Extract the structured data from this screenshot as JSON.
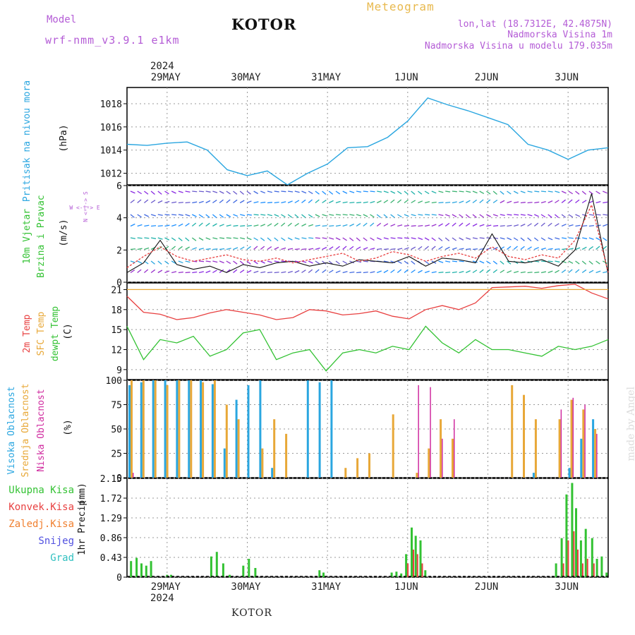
{
  "header": {
    "model_label": "Model",
    "model_name": "wrf-nmm_v3.9.1 e1km",
    "title": "KOTOR",
    "product": "Meteogram",
    "coords": "lon,lat (18.7312E, 42.4875N)",
    "altitude": "Nadmorska Visina 1m",
    "model_altitude": "Nadmorska Visina u modelu 179.035m",
    "year": "2024",
    "footer": "KOTOR",
    "watermark": "made by Angel"
  },
  "time_axis": {
    "top_labels": [
      "29MAY",
      "30MAY",
      "31MAY",
      "1JUN",
      "2JUN",
      "3JUN"
    ],
    "bottom_labels": [
      "29MAY",
      "30MAY",
      "31MAY",
      "1JUN",
      "2JUN",
      "3JUN"
    ],
    "day_fraction_positions": [
      0.5,
      1.5,
      2.5,
      3.5,
      4.5,
      5.5
    ],
    "range_days": [
      0,
      6
    ]
  },
  "panels": {
    "pressure": {
      "title": "Pritisak na nivou mora",
      "unit": "(hPa)",
      "color": "#2aa6e0"
    },
    "wind": {
      "title": "10m Vjetar",
      "title2": "Brzina i Pravac",
      "unit": "(m/s)",
      "compass": "W <-|-> E",
      "compass_vert": "N <-|-> S"
    },
    "temp": {
      "label_2m": "2m Temp",
      "label_sfc": "SFC Temp",
      "label_dew": "dewpt Temp",
      "unit": "(C)"
    },
    "cloud": {
      "label_high": "Visoka Oblacnost",
      "label_mid": "Srednja Oblacnost",
      "label_low": "Niska Oblacnost",
      "unit": "(%)"
    },
    "precip": {
      "title": "1hr Precip",
      "unit": "(mm)",
      "legend": [
        {
          "label": "Ukupna Kisa",
          "color": "#33c233"
        },
        {
          "label": "Konvek.Kisa",
          "color": "#e84040"
        },
        {
          "label": "Zaledj.Kisa",
          "color": "#f08030"
        },
        {
          "label": "Snijeg",
          "color": "#5050e0"
        },
        {
          "label": "Grad",
          "color": "#30c0c0"
        }
      ]
    }
  },
  "chart_data": [
    {
      "type": "line",
      "panel": "pressure",
      "x": [
        0,
        0.25,
        0.5,
        0.75,
        1.0,
        1.25,
        1.5,
        1.75,
        2.0,
        2.25,
        2.5,
        2.75,
        3.0,
        3.25,
        3.5,
        3.75,
        4.0,
        4.25,
        4.5,
        4.75,
        5.0,
        5.25,
        5.5,
        5.75,
        6.0
      ],
      "values": [
        1014.5,
        1014.4,
        1014.6,
        1014.7,
        1014.0,
        1012.3,
        1011.8,
        1012.2,
        1011.0,
        1012.0,
        1012.8,
        1014.2,
        1014.3,
        1015.1,
        1016.5,
        1018.5,
        1017.9,
        1017.4,
        1016.8,
        1016.2,
        1014.5,
        1014.0,
        1013.2,
        1014.0,
        1014.2
      ],
      "ylim": [
        1011,
        1019.4
      ],
      "yticks": [
        1012,
        1014,
        1016,
        1018
      ]
    },
    {
      "type": "line",
      "panel": "wind",
      "series": [
        {
          "name": "",
          "values": [
            0.6,
            1.2,
            2.6,
            1.1,
            0.8,
            1.0,
            0.6,
            1.1,
            0.9,
            1.2,
            1.3,
            1.0,
            1.2,
            1.0,
            1.4,
            1.3,
            1.2,
            1.6,
            1.0,
            1.5,
            1.4,
            1.2,
            3.0,
            1.3,
            1.2,
            1.4,
            1.0,
            2.0,
            5.5,
            0.5
          ],
          "color": "#111111"
        },
        {
          "name": "",
          "values": [
            0.9,
            1.6,
            2.2,
            1.6,
            1.3,
            1.5,
            1.7,
            1.4,
            1.3,
            1.5,
            1.2,
            1.4,
            1.6,
            1.8,
            1.3,
            1.5,
            1.9,
            1.7,
            1.3,
            1.6,
            1.8,
            1.5,
            2.2,
            1.6,
            1.4,
            1.7,
            1.5,
            2.6,
            4.8,
            0.6
          ],
          "color": "#e84040"
        }
      ],
      "ylim": [
        0,
        6
      ],
      "yticks": [
        0,
        2,
        4,
        6
      ]
    },
    {
      "type": "line",
      "panel": "temp",
      "series": [
        {
          "name": "",
          "color": "#e84040",
          "values": [
            20.0,
            17.6,
            17.3,
            16.5,
            16.8,
            17.5,
            18.0,
            17.6,
            17.2,
            16.5,
            16.8,
            18.0,
            17.8,
            17.2,
            17.4,
            17.8,
            17.0,
            16.6,
            18.0,
            18.6,
            18.0,
            19.0,
            21.3,
            21.4,
            21.5,
            21.2,
            21.6,
            21.8,
            20.5,
            19.6
          ]
        },
        {
          "name": "",
          "color": "#e8a838",
          "values": [
            21.0,
            21.0,
            21.0,
            21.0,
            21.0,
            21.0,
            21.0,
            21.0,
            21.0,
            21.0,
            21.0,
            21.0,
            21.0,
            21.0,
            21.0,
            21.0,
            21.0,
            21.0,
            21.0,
            21.0,
            21.0,
            21.0,
            21.0,
            21.0,
            21.0,
            21.0,
            21.0,
            21.0,
            21.0,
            21.0
          ]
        },
        {
          "name": "",
          "color": "#33c233",
          "values": [
            15.5,
            10.5,
            13.5,
            13.0,
            14.0,
            11.0,
            12.0,
            14.5,
            15.0,
            10.5,
            11.5,
            12.0,
            8.8,
            11.5,
            12.0,
            11.5,
            12.5,
            12.0,
            15.5,
            13.0,
            11.5,
            13.5,
            12.0,
            12.0,
            11.5,
            11.0,
            12.5,
            12.0,
            12.5,
            13.5
          ]
        }
      ],
      "ylim": [
        7.5,
        22
      ],
      "yticks": [
        9,
        12,
        15,
        18,
        21
      ]
    },
    {
      "type": "bar",
      "panel": "cloud",
      "series": [
        {
          "name": "",
          "color": "#2aa6e0",
          "values": [
            95,
            98,
            100,
            100,
            100,
            100,
            100,
            96,
            30,
            80,
            95,
            100,
            10,
            0,
            0,
            100,
            98,
            100,
            0,
            0,
            0,
            0,
            0,
            0,
            0,
            0,
            0,
            0,
            0,
            0,
            0,
            0,
            0,
            0,
            5,
            0,
            0,
            10,
            40,
            60
          ]
        },
        {
          "name": "",
          "color": "#e8a838",
          "values": [
            100,
            100,
            100,
            95,
            100,
            100,
            98,
            100,
            75,
            60,
            0,
            30,
            60,
            45,
            0,
            0,
            0,
            0,
            10,
            20,
            25,
            0,
            65,
            0,
            5,
            30,
            60,
            40,
            0,
            0,
            0,
            0,
            95,
            85,
            60,
            0,
            60,
            80,
            70,
            50
          ]
        },
        {
          "name": "",
          "color": "#d02ca0",
          "values": [
            5,
            0,
            0,
            0,
            0,
            0,
            0,
            0,
            0,
            0,
            0,
            0,
            0,
            0,
            0,
            0,
            0,
            0,
            0,
            0,
            0,
            0,
            0,
            0,
            95,
            93,
            40,
            60,
            0,
            0,
            0,
            0,
            0,
            0,
            0,
            0,
            70,
            82,
            75,
            45
          ]
        }
      ],
      "ylim": [
        0,
        100
      ],
      "yticks": [
        0,
        25,
        50,
        75,
        100
      ]
    },
    {
      "type": "bar",
      "panel": "precip",
      "x": [
        0.05,
        0.12,
        0.18,
        0.24,
        0.3,
        0.5,
        0.55,
        1.05,
        1.12,
        1.2,
        1.28,
        1.45,
        1.52,
        1.6,
        2.4,
        2.45,
        3.3,
        3.36,
        3.42,
        3.48,
        3.55,
        3.6,
        3.66,
        3.72,
        5.35,
        5.42,
        5.48,
        5.55,
        5.6,
        5.66,
        5.72,
        5.8,
        5.86,
        5.92,
        5.98
      ],
      "values": [
        0.35,
        0.42,
        0.3,
        0.25,
        0.35,
        0.05,
        0.05,
        0.45,
        0.55,
        0.3,
        0.05,
        0.25,
        0.4,
        0.2,
        0.15,
        0.1,
        0.1,
        0.12,
        0.08,
        0.5,
        1.08,
        0.9,
        0.8,
        0.15,
        0.3,
        0.85,
        1.8,
        2.05,
        1.5,
        0.8,
        1.05,
        0.85,
        0.4,
        0.45,
        0.1
      ],
      "convective": [
        0,
        0,
        0,
        0,
        0,
        0,
        0,
        0,
        0,
        0,
        0,
        0,
        0,
        0,
        0,
        0,
        0,
        0,
        0,
        0.3,
        0.6,
        0.5,
        0.3,
        0,
        0,
        0.3,
        0.8,
        1.0,
        0.6,
        0.3,
        0.4,
        0.3,
        0,
        0,
        0
      ],
      "ylim": [
        0,
        2.15
      ],
      "yticks": [
        0,
        0.43,
        0.86,
        1.29,
        1.72,
        2.15
      ]
    }
  ]
}
